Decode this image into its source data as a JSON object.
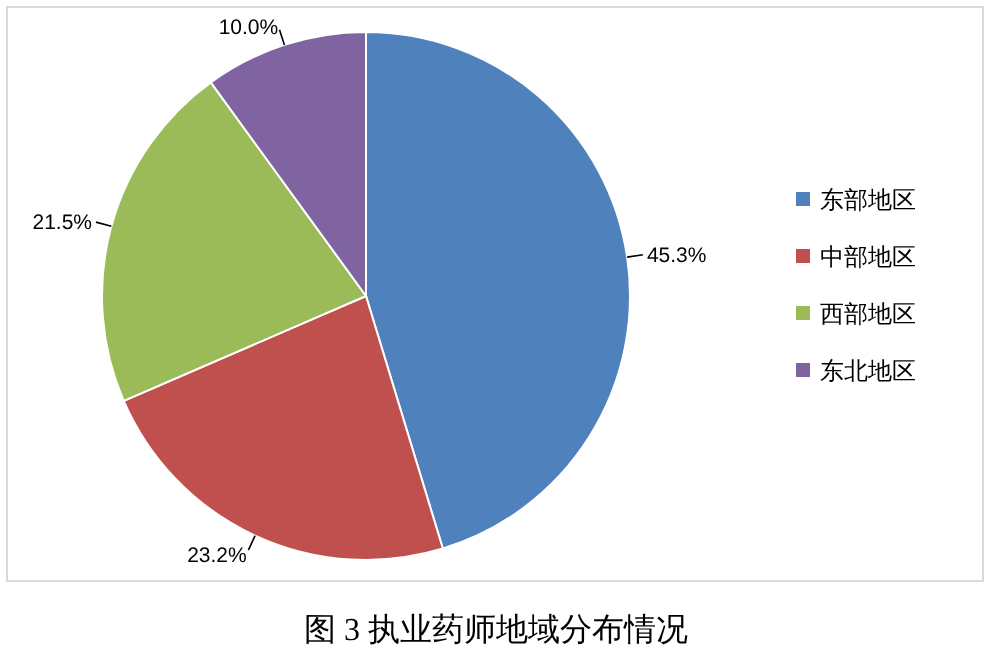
{
  "chart_data": {
    "type": "pie",
    "categories": [
      "东部地区",
      "中部地区",
      "西部地区",
      "东北地区"
    ],
    "values": [
      45.3,
      23.2,
      21.5,
      10.0
    ],
    "colors": [
      "#4f81bd",
      "#c0504d",
      "#9bbb59",
      "#8064a2"
    ],
    "value_labels": [
      "45.3%",
      "23.2%",
      "21.5%",
      "10.0%"
    ],
    "legend": "right",
    "annotations": [
      "图 3 执业药师地域分布情况"
    ]
  }
}
